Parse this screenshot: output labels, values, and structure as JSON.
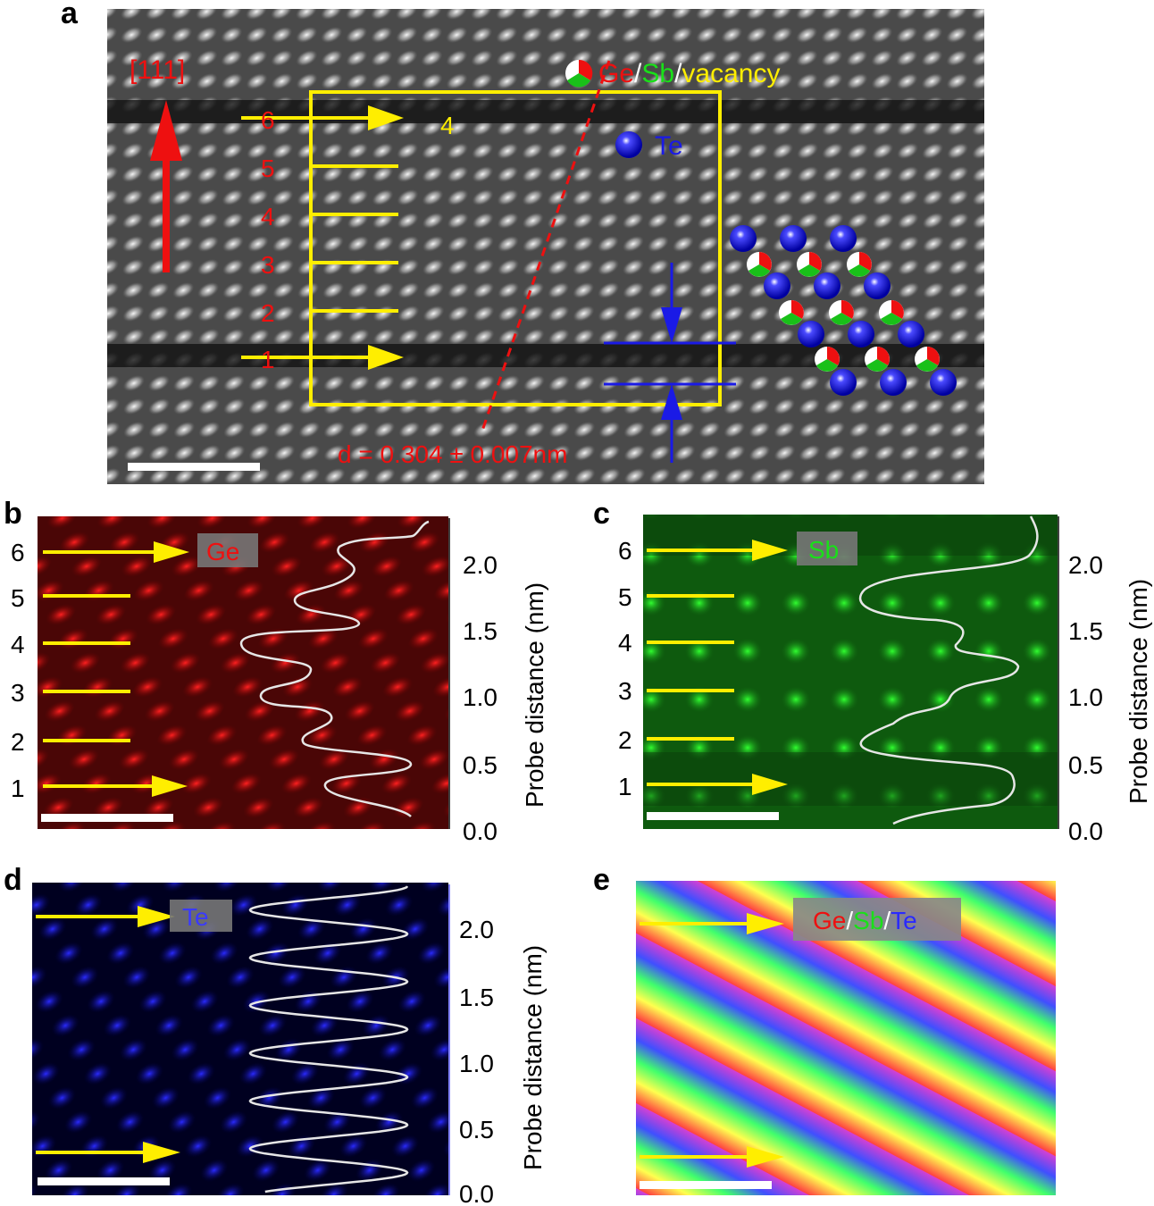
{
  "panel_a": {
    "label": "a",
    "direction": "[111]",
    "legend_ge": "Ge",
    "legend_sep1": "/",
    "legend_sb": "Sb",
    "legend_sep2": "/",
    "legend_vac": "vacancy",
    "legend_te": "Te",
    "layers": [
      "1",
      "2",
      "3",
      "4",
      "5",
      "6"
    ],
    "block_count": "4",
    "spacing": "d = 0.304 ± 0.007nm"
  },
  "panel_b": {
    "label": "b",
    "element": "Ge",
    "layers": [
      "1",
      "2",
      "3",
      "4",
      "5",
      "6"
    ],
    "axis_label": "Probe distance (nm)",
    "ticks": [
      "0.0",
      "0.5",
      "1.0",
      "1.5",
      "2.0"
    ]
  },
  "panel_c": {
    "label": "c",
    "element": "Sb",
    "layers": [
      "1",
      "2",
      "3",
      "4",
      "5",
      "6"
    ],
    "axis_label": "Probe distance (nm)",
    "ticks": [
      "0.0",
      "0.5",
      "1.0",
      "1.5",
      "2.0"
    ]
  },
  "panel_d": {
    "label": "d",
    "element": "Te",
    "axis_label": "Probe distance (nm)",
    "ticks": [
      "0.0",
      "0.5",
      "1.0",
      "1.5",
      "2.0"
    ]
  },
  "panel_e": {
    "label": "e",
    "ge": "Ge",
    "sep1": "/",
    "sb": "Sb",
    "sep2": "/",
    "te": "Te"
  },
  "colors": {
    "ge": "#e0101a",
    "sb": "#19d019",
    "te": "#1a1ae6",
    "marker": "#ffee00"
  }
}
